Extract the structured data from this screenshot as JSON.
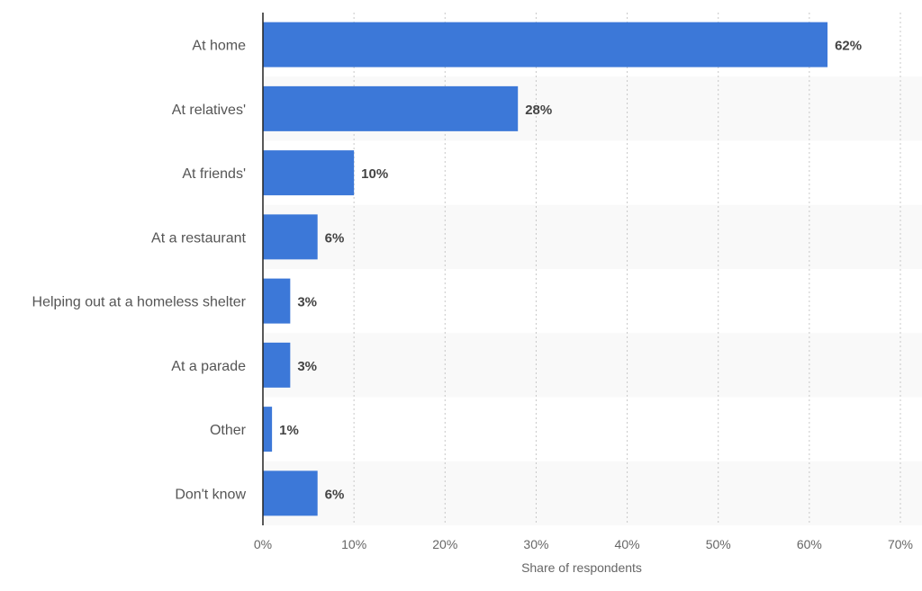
{
  "chart_data": {
    "type": "bar",
    "orientation": "horizontal",
    "title": "",
    "xlabel": "Share of respondents",
    "ylabel": "",
    "categories": [
      "At home",
      "At relatives'",
      "At friends'",
      "At a restaurant",
      "Helping out at a homeless shelter",
      "At a parade",
      "Other",
      "Don't know"
    ],
    "values": [
      62,
      28,
      10,
      6,
      3,
      3,
      1,
      6
    ],
    "value_labels": [
      "62%",
      "28%",
      "10%",
      "6%",
      "3%",
      "3%",
      "1%",
      "6%"
    ],
    "xlim": [
      0,
      70
    ],
    "xticks": [
      0,
      10,
      20,
      30,
      40,
      50,
      60,
      70
    ],
    "xtick_labels": [
      "0%",
      "10%",
      "20%",
      "30%",
      "40%",
      "50%",
      "60%",
      "70%"
    ],
    "grid": true,
    "bar_color": "#3c78d8",
    "band_color": "#f9f9f9"
  }
}
